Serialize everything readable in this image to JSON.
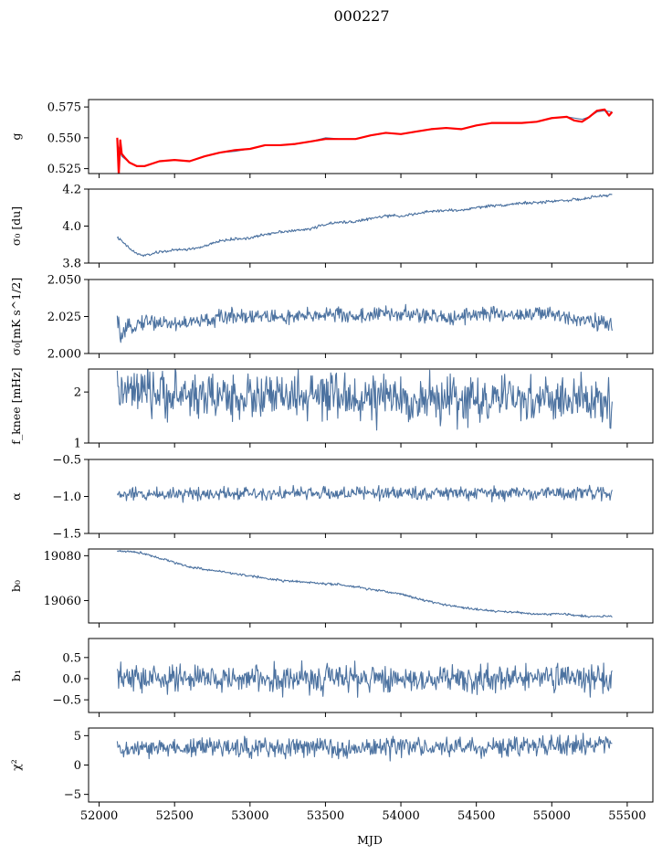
{
  "figure": {
    "title": "000227",
    "xlabel": "MJD",
    "x_ticks": [
      52000,
      52500,
      53000,
      53500,
      54000,
      54500,
      55000,
      55500
    ],
    "xlim": [
      51930,
      55670
    ],
    "line_color": "#4c72a0",
    "fit_color": "#ff0000"
  },
  "chart_data": [
    {
      "type": "line",
      "ylabel": "g",
      "ylim": [
        0.521,
        0.581
      ],
      "yticks": [
        0.525,
        0.55,
        0.575
      ],
      "ytick_labels": [
        "0.525",
        "0.550",
        "0.575"
      ],
      "x_range": [
        52120,
        55400
      ],
      "series": [
        {
          "color": "#4c72a0",
          "points": [
            [
              52120,
              0.545
            ],
            [
              52150,
              0.535
            ],
            [
              52200,
              0.53
            ],
            [
              52250,
              0.527
            ],
            [
              52300,
              0.527
            ],
            [
              52400,
              0.531
            ],
            [
              52500,
              0.532
            ],
            [
              52600,
              0.531
            ],
            [
              52700,
              0.535
            ],
            [
              52800,
              0.538
            ],
            [
              52900,
              0.539
            ],
            [
              53000,
              0.541
            ],
            [
              53100,
              0.544
            ],
            [
              53200,
              0.544
            ],
            [
              53300,
              0.545
            ],
            [
              53400,
              0.547
            ],
            [
              53500,
              0.55
            ],
            [
              53600,
              0.549
            ],
            [
              53700,
              0.549
            ],
            [
              53800,
              0.552
            ],
            [
              53900,
              0.554
            ],
            [
              54000,
              0.553
            ],
            [
              54100,
              0.555
            ],
            [
              54200,
              0.557
            ],
            [
              54300,
              0.558
            ],
            [
              54400,
              0.557
            ],
            [
              54500,
              0.56
            ],
            [
              54600,
              0.562
            ],
            [
              54700,
              0.562
            ],
            [
              54800,
              0.562
            ],
            [
              54900,
              0.563
            ],
            [
              55000,
              0.566
            ],
            [
              55100,
              0.567
            ],
            [
              55150,
              0.566
            ],
            [
              55200,
              0.565
            ],
            [
              55250,
              0.567
            ],
            [
              55300,
              0.571
            ],
            [
              55350,
              0.572
            ],
            [
              55400,
              0.571
            ]
          ]
        },
        {
          "color": "#ff0000",
          "points": [
            [
              52120,
              0.55
            ],
            [
              52130,
              0.52
            ],
            [
              52140,
              0.548
            ],
            [
              52150,
              0.537
            ],
            [
              52170,
              0.534
            ],
            [
              52200,
              0.53
            ],
            [
              52250,
              0.527
            ],
            [
              52300,
              0.527
            ],
            [
              52400,
              0.531
            ],
            [
              52500,
              0.532
            ],
            [
              52600,
              0.531
            ],
            [
              52700,
              0.535
            ],
            [
              52800,
              0.538
            ],
            [
              52900,
              0.54
            ],
            [
              53000,
              0.541
            ],
            [
              53100,
              0.544
            ],
            [
              53200,
              0.544
            ],
            [
              53300,
              0.545
            ],
            [
              53400,
              0.547
            ],
            [
              53500,
              0.549
            ],
            [
              53600,
              0.549
            ],
            [
              53700,
              0.549
            ],
            [
              53800,
              0.552
            ],
            [
              53900,
              0.554
            ],
            [
              54000,
              0.553
            ],
            [
              54100,
              0.555
            ],
            [
              54200,
              0.557
            ],
            [
              54300,
              0.558
            ],
            [
              54400,
              0.557
            ],
            [
              54500,
              0.56
            ],
            [
              54600,
              0.562
            ],
            [
              54700,
              0.562
            ],
            [
              54800,
              0.562
            ],
            [
              54900,
              0.563
            ],
            [
              55000,
              0.566
            ],
            [
              55100,
              0.567
            ],
            [
              55150,
              0.564
            ],
            [
              55200,
              0.563
            ],
            [
              55250,
              0.567
            ],
            [
              55300,
              0.572
            ],
            [
              55350,
              0.573
            ],
            [
              55380,
              0.568
            ],
            [
              55400,
              0.571
            ]
          ]
        }
      ]
    },
    {
      "type": "line",
      "ylabel": "σ₀ [du]",
      "ylim": [
        3.8,
        4.2
      ],
      "yticks": [
        3.8,
        4.0,
        4.2
      ],
      "ytick_labels": [
        "3.8",
        "4.0",
        "4.2"
      ],
      "x_range": [
        52120,
        55400
      ],
      "noise": 0.005,
      "series": [
        {
          "color": "#4c72a0",
          "points": [
            [
              52120,
              3.94
            ],
            [
              52200,
              3.88
            ],
            [
              52250,
              3.85
            ],
            [
              52300,
              3.84
            ],
            [
              52400,
              3.86
            ],
            [
              52500,
              3.87
            ],
            [
              52600,
              3.875
            ],
            [
              52700,
              3.89
            ],
            [
              52800,
              3.92
            ],
            [
              52900,
              3.93
            ],
            [
              53000,
              3.935
            ],
            [
              53100,
              3.955
            ],
            [
              53200,
              3.97
            ],
            [
              53300,
              3.975
            ],
            [
              53400,
              3.985
            ],
            [
              53500,
              4.01
            ],
            [
              53600,
              4.02
            ],
            [
              53700,
              4.025
            ],
            [
              53800,
              4.04
            ],
            [
              53900,
              4.055
            ],
            [
              54000,
              4.055
            ],
            [
              54100,
              4.065
            ],
            [
              54200,
              4.08
            ],
            [
              54300,
              4.085
            ],
            [
              54400,
              4.085
            ],
            [
              54500,
              4.1
            ],
            [
              54600,
              4.11
            ],
            [
              54700,
              4.115
            ],
            [
              54800,
              4.125
            ],
            [
              54900,
              4.125
            ],
            [
              55000,
              4.135
            ],
            [
              55100,
              4.14
            ],
            [
              55200,
              4.145
            ],
            [
              55300,
              4.16
            ],
            [
              55400,
              4.17
            ]
          ]
        }
      ]
    },
    {
      "type": "line",
      "ylabel": "σ₀[mK s^1/2]",
      "ylim": [
        2.0,
        2.05
      ],
      "yticks": [
        2.0,
        2.025,
        2.05
      ],
      "ytick_labels": [
        "2.000",
        "2.025",
        "2.050"
      ],
      "x_range": [
        52120,
        55400
      ],
      "noise": 0.0035,
      "series": [
        {
          "color": "#4c72a0",
          "points": [
            [
              52120,
              2.022
            ],
            [
              52150,
              2.01
            ],
            [
              52200,
              2.018
            ],
            [
              52300,
              2.022
            ],
            [
              52500,
              2.02
            ],
            [
              52700,
              2.022
            ],
            [
              52900,
              2.026
            ],
            [
              53100,
              2.025
            ],
            [
              53300,
              2.024
            ],
            [
              53500,
              2.027
            ],
            [
              53700,
              2.025
            ],
            [
              53900,
              2.027
            ],
            [
              54100,
              2.026
            ],
            [
              54300,
              2.024
            ],
            [
              54500,
              2.027
            ],
            [
              54700,
              2.026
            ],
            [
              54900,
              2.027
            ],
            [
              55100,
              2.025
            ],
            [
              55300,
              2.022
            ],
            [
              55400,
              2.018
            ]
          ]
        }
      ]
    },
    {
      "type": "line",
      "ylabel": "f_knee [mHz]",
      "ylim": [
        1.0,
        2.45
      ],
      "yticks": [
        1,
        2
      ],
      "ytick_labels": [
        "1",
        "2"
      ],
      "x_range": [
        52120,
        55400
      ],
      "noise": 0.3,
      "series": [
        {
          "color": "#4c72a0",
          "points": [
            [
              52120,
              2.0
            ],
            [
              52500,
              1.95
            ],
            [
              53000,
              1.9
            ],
            [
              53500,
              1.9
            ],
            [
              54000,
              1.85
            ],
            [
              54500,
              1.85
            ],
            [
              55000,
              1.85
            ],
            [
              55400,
              1.8
            ]
          ]
        }
      ]
    },
    {
      "type": "line",
      "ylabel": "α",
      "ylim": [
        -1.5,
        -0.5
      ],
      "yticks": [
        -1.5,
        -1.0,
        -0.5
      ],
      "ytick_labels": [
        "−1.5",
        "−1.0",
        "−0.5"
      ],
      "x_range": [
        52120,
        55400
      ],
      "noise": 0.06,
      "series": [
        {
          "color": "#4c72a0",
          "points": [
            [
              52120,
              -0.98
            ],
            [
              52500,
              -0.96
            ],
            [
              53000,
              -0.95
            ],
            [
              53500,
              -0.96
            ],
            [
              54000,
              -0.95
            ],
            [
              54500,
              -0.96
            ],
            [
              55000,
              -0.95
            ],
            [
              55400,
              -0.96
            ]
          ]
        }
      ]
    },
    {
      "type": "line",
      "ylabel": "b₀",
      "ylim": [
        19050,
        19083
      ],
      "yticks": [
        19060,
        19080
      ],
      "ytick_labels": [
        "19060",
        "19080"
      ],
      "x_range": [
        52120,
        55400
      ],
      "noise": 0.35,
      "series": [
        {
          "color": "#4c72a0",
          "points": [
            [
              52120,
              19082
            ],
            [
              52200,
              19082
            ],
            [
              52300,
              19081
            ],
            [
              52400,
              19079
            ],
            [
              52500,
              19077
            ],
            [
              52600,
              19075
            ],
            [
              52800,
              19073
            ],
            [
              53000,
              19071
            ],
            [
              53200,
              19069
            ],
            [
              53400,
              19068
            ],
            [
              53600,
              19067
            ],
            [
              53800,
              19065
            ],
            [
              54000,
              19063
            ],
            [
              54100,
              19061
            ],
            [
              54300,
              19058
            ],
            [
              54500,
              19056
            ],
            [
              54700,
              19055
            ],
            [
              54900,
              19054
            ],
            [
              55100,
              19054
            ],
            [
              55200,
              19053
            ],
            [
              55300,
              19053
            ],
            [
              55400,
              19053
            ]
          ]
        }
      ]
    },
    {
      "type": "line",
      "ylabel": "b₁",
      "ylim": [
        -0.8,
        0.95
      ],
      "yticks": [
        -0.5,
        0.0,
        0.5
      ],
      "ytick_labels": [
        "−0.5",
        "0.0",
        "0.5"
      ],
      "x_range": [
        52120,
        55400
      ],
      "noise": 0.22,
      "series": [
        {
          "color": "#4c72a0",
          "points": [
            [
              52120,
              0.0
            ],
            [
              53000,
              0.0
            ],
            [
              54000,
              0.0
            ],
            [
              55000,
              0.0
            ],
            [
              55400,
              0.0
            ]
          ]
        }
      ]
    },
    {
      "type": "line",
      "ylabel": "χ²",
      "ylim": [
        -6.3,
        6.3
      ],
      "yticks": [
        -5,
        0,
        5
      ],
      "ytick_labels": [
        "−5",
        "0",
        "5"
      ],
      "x_range": [
        52120,
        55400
      ],
      "noise": 1.1,
      "series": [
        {
          "color": "#4c72a0",
          "points": [
            [
              52120,
              2.5
            ],
            [
              52500,
              3.0
            ],
            [
              53000,
              3.0
            ],
            [
              53500,
              3.0
            ],
            [
              54000,
              3.0
            ],
            [
              54500,
              3.0
            ],
            [
              55000,
              3.2
            ],
            [
              55400,
              3.5
            ]
          ]
        }
      ]
    }
  ]
}
